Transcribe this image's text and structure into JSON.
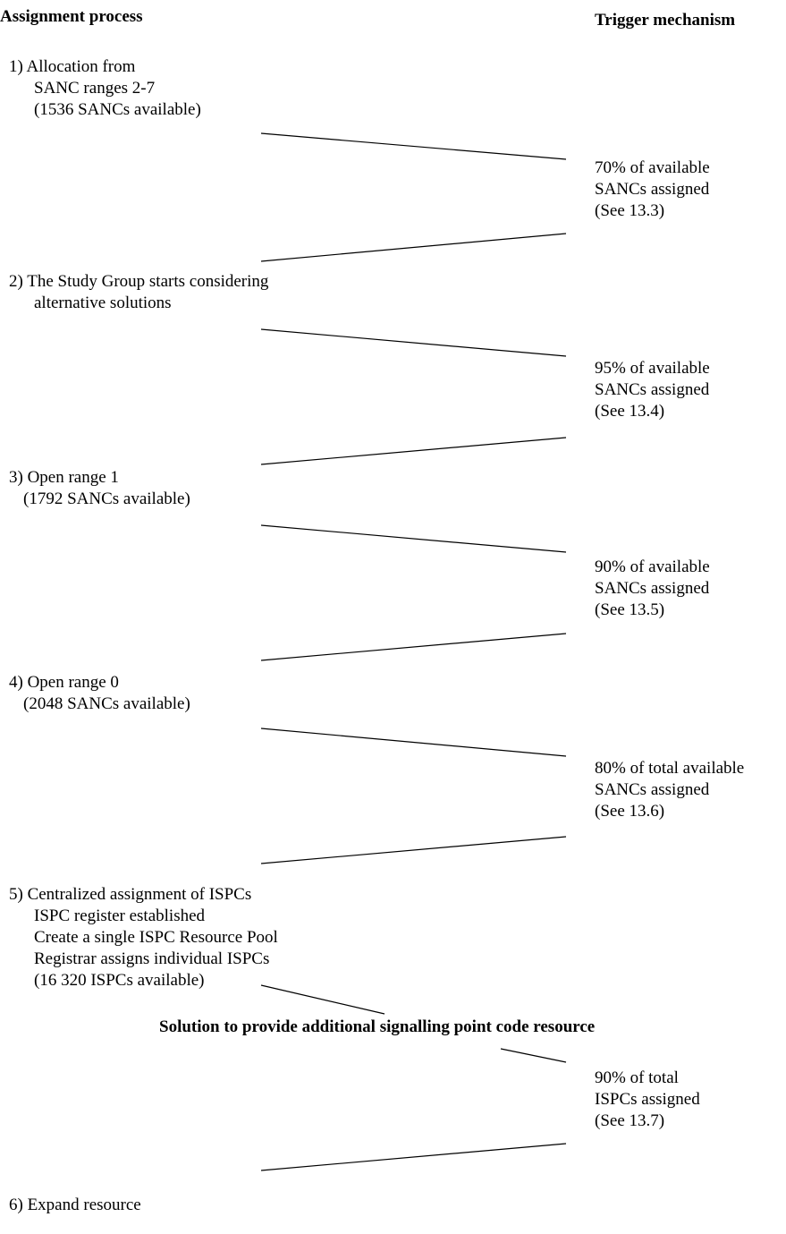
{
  "headings": {
    "left": "Assignment process",
    "right": "Trigger mechanism"
  },
  "steps": [
    {
      "lines": [
        " 1)  Allocation from",
        "SANC ranges 2-7",
        "(1536 SANCs available)"
      ]
    },
    {
      "lines": [
        "2) The Study Group starts considering",
        "alternative solutions"
      ]
    },
    {
      "lines": [
        "3) Open range 1",
        "(1792 SANCs available)"
      ]
    },
    {
      "lines": [
        "4) Open range 0",
        "(2048 SANCs available)"
      ]
    },
    {
      "lines": [
        "5) Centralized assignment of ISPCs",
        "ISPC register established",
        "Create a single ISPC Resource Pool",
        "Registrar assigns individual ISPCs",
        "(16 320 ISPCs available)"
      ]
    },
    {
      "lines": [
        "6) Expand resource"
      ]
    }
  ],
  "triggers": [
    {
      "lines": [
        "70% of available",
        "SANCs assigned",
        "(See 13.3)"
      ]
    },
    {
      "lines": [
        "95% of available",
        "SANCs assigned",
        "(See 13.4)"
      ]
    },
    {
      "lines": [
        "90% of available",
        "SANCs assigned",
        "(See 13.5)"
      ]
    },
    {
      "lines": [
        "80% of total available",
        "SANCs assigned",
        "(See 13.6)"
      ]
    },
    {
      "lines": [
        "90% of total",
        "ISPCs assigned",
        "(See 13.7)"
      ]
    }
  ],
  "banner": "Solution to provide additional signalling point code resource"
}
